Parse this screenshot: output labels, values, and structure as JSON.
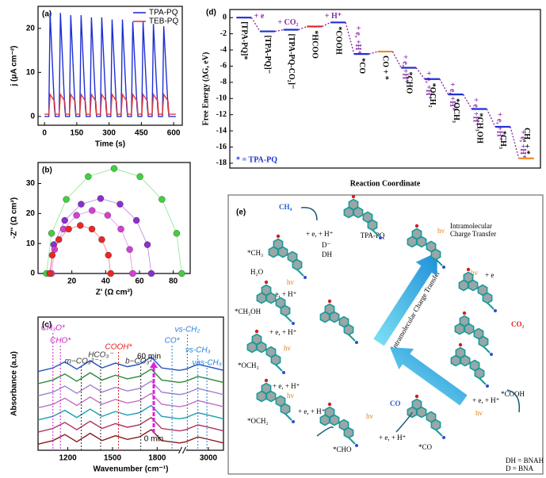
{
  "chart_data": [
    {
      "type": "line",
      "label": "(a)",
      "xlabel": "Time (s)",
      "ylabel": "j (μA cm⁻²)",
      "xlim": [
        -30,
        640
      ],
      "ylim": [
        -2,
        25
      ],
      "xticks": [
        0,
        150,
        300,
        450,
        600
      ],
      "yticks": [
        0,
        10,
        20
      ],
      "legend": "upper right",
      "x": [
        0,
        20,
        26,
        46,
        50,
        68,
        74,
        94,
        98,
        116,
        122,
        142,
        146,
        164,
        170,
        190,
        194,
        212,
        218,
        238,
        242,
        260,
        266,
        286,
        290,
        308,
        314,
        334,
        338,
        356,
        362,
        382,
        386,
        404,
        410,
        430,
        434,
        452,
        458,
        478,
        482,
        500,
        506,
        526,
        530,
        548,
        554,
        574,
        578,
        610
      ],
      "series": [
        {
          "name": "TPA-PQ",
          "color": "#1f2fd6",
          "values": [
            0,
            0,
            23.5,
            2,
            0,
            0,
            23.5,
            2,
            0,
            0,
            23,
            2,
            0,
            0,
            23,
            2,
            0,
            0,
            22.5,
            2,
            0,
            0,
            22.5,
            2,
            0,
            0,
            22,
            2,
            0,
            0,
            22,
            2,
            0,
            0,
            21.5,
            2,
            0,
            0,
            21.5,
            2,
            0,
            0,
            21,
            2,
            0,
            0,
            20.5,
            2,
            0,
            0
          ]
        },
        {
          "name": "TEB-PQ",
          "color": "#e23a3a",
          "values": [
            0.5,
            0.5,
            5,
            3.5,
            0.5,
            0.5,
            5,
            3.5,
            0.5,
            0.5,
            5,
            3.5,
            0.5,
            0.5,
            5,
            3.5,
            0.5,
            0.5,
            5,
            3.5,
            0.5,
            0.5,
            5,
            3.5,
            0.5,
            0.5,
            5,
            3.5,
            0.5,
            0.5,
            5,
            3.5,
            0.5,
            0.5,
            5,
            3.5,
            0.5,
            0.5,
            5,
            3.5,
            0.5,
            0.5,
            5,
            3.5,
            0.5,
            0.5,
            5,
            3.5,
            0.5,
            0.5
          ]
        }
      ]
    },
    {
      "type": "scatter",
      "label": "(b)",
      "xlabel": "Z' (Ω cm²)",
      "ylabel": "-Z'' (Ω cm²)",
      "xlim": [
        0,
        90
      ],
      "ylim": [
        0,
        37
      ],
      "xticks": [
        20,
        40,
        60,
        80
      ],
      "yticks": [
        0,
        10,
        20,
        30
      ],
      "series": [
        {
          "color": "#3fd13f",
          "x": [
            5,
            8,
            16.7,
            29.7,
            45,
            60.3,
            73.3,
            82,
            85
          ],
          "values": [
            0,
            13.4,
            24.7,
            32.3,
            35,
            32.3,
            24.7,
            13.4,
            0
          ]
        },
        {
          "color": "#8a2fd0",
          "x": [
            7,
            9.3,
            15.8,
            25.5,
            37,
            48.5,
            58.2,
            64.7,
            67
          ],
          "values": [
            0,
            9.6,
            17.7,
            23.1,
            25,
            23.1,
            17.7,
            9.6,
            0
          ]
        },
        {
          "color": "#d43fd4",
          "x": [
            8,
            9.8,
            15,
            22.8,
            32,
            41.2,
            49,
            54.2,
            56
          ],
          "values": [
            0,
            8,
            14.8,
            19.4,
            21,
            19.4,
            14.8,
            8,
            0
          ]
        },
        {
          "color": "#ee2525",
          "x": [
            7,
            8.4,
            12.3,
            18.1,
            25,
            31.9,
            37.7,
            41.6,
            43
          ],
          "values": [
            0,
            6.1,
            11.3,
            14.8,
            16,
            14.8,
            11.3,
            6.1,
            0
          ]
        }
      ]
    },
    {
      "type": "line",
      "label": "(c)",
      "xlabel": "Wavenumber (cm⁻¹)",
      "ylabel": "Absorbance (a.u)",
      "xlim": [
        1000,
        3100
      ],
      "xbreak": [
        1950,
        2850
      ],
      "ylim": [
        0.5,
        11.5
      ],
      "xticks": [
        1200,
        1500,
        1800,
        3000
      ],
      "x": [
        1000,
        1100,
        1180,
        1260,
        1350,
        1430,
        1520,
        1600,
        1680,
        1760,
        1830,
        1950,
        2850,
        2930,
        3000,
        3100
      ],
      "series": [
        {
          "color": "#8b1a1a",
          "values": [
            1,
            1.3,
            1.8,
            1.2,
            1.9,
            1.3,
            1.7,
            1.4,
            1.6,
            2.2,
            1.3,
            1.1,
            1.2,
            1.6,
            1.4,
            1.1
          ]
        },
        {
          "color": "#b03060",
          "values": [
            2,
            2.3,
            2.8,
            2.2,
            2.9,
            2.3,
            2.7,
            2.4,
            2.6,
            3.2,
            2.3,
            2.1,
            2.2,
            2.6,
            2.4,
            2.1
          ]
        },
        {
          "color": "#1aa0b0",
          "values": [
            3,
            3.3,
            3.8,
            3.2,
            3.9,
            3.3,
            3.7,
            3.4,
            3.6,
            4.2,
            3.3,
            3.1,
            3.2,
            3.6,
            3.4,
            3.1
          ]
        },
        {
          "color": "#c070c0",
          "values": [
            4,
            4.3,
            4.8,
            4.2,
            4.9,
            4.3,
            4.7,
            4.4,
            4.6,
            5.2,
            4.3,
            4.1,
            4.2,
            4.6,
            4.4,
            4.1
          ]
        },
        {
          "color": "#a080d0",
          "values": [
            5,
            5.3,
            5.8,
            5.2,
            5.9,
            5.3,
            5.7,
            5.4,
            5.6,
            6.2,
            5.3,
            5.1,
            5.2,
            5.6,
            5.4,
            5.1
          ]
        },
        {
          "color": "#2a8a3a",
          "values": [
            6,
            6.3,
            6.8,
            6.2,
            6.9,
            6.3,
            6.7,
            6.4,
            6.6,
            7.2,
            6.3,
            6.1,
            6.2,
            6.6,
            6.4,
            6.1
          ]
        },
        {
          "color": "#2050c0",
          "values": [
            7,
            7.3,
            7.8,
            7.2,
            7.9,
            7.3,
            7.7,
            7.4,
            7.6,
            8.2,
            7.3,
            7.1,
            7.2,
            7.6,
            7.4,
            7.1
          ]
        }
      ],
      "markers": [
        {
          "label": "CH₃O*",
          "x": 1100,
          "color": "#cc22cc"
        },
        {
          "label": "CHO*",
          "x": 1150,
          "color": "#cc22cc"
        },
        {
          "label": "m−CO₃²⁻",
          "x": 1290,
          "color": "#333333"
        },
        {
          "label": "HCO₃⁻",
          "x": 1420,
          "color": "#333333"
        },
        {
          "label": "COOH*",
          "x": 1540,
          "color": "#e02020"
        },
        {
          "label": "b−CO₃²⁻",
          "x": 1690,
          "color": "#333333"
        },
        {
          "label": "CO*",
          "x": 1900,
          "color": "#2a7fd0"
        },
        {
          "label": "νs-CH₂",
          "x": 2860,
          "color": "#2a7fd0"
        },
        {
          "label": "νs-CH₃",
          "x": 2930,
          "color": "#2a7fd0"
        },
        {
          "label": "νas-CH₃",
          "x": 2990,
          "color": "#2a7fd0"
        }
      ],
      "time_labels": [
        "60 min",
        "0 min"
      ]
    },
    {
      "type": "energy",
      "label": "(d)",
      "xlabel": "Reaction Coordinate",
      "ylabel": "Free Energy (ΔG, eV)",
      "ylim": [
        -18.6,
        1
      ],
      "yticks": [
        0,
        -2,
        -4,
        -6,
        -8,
        -10,
        -12,
        -14,
        -16,
        -18
      ],
      "note": "* = TPA-PQ",
      "levels": [
        {
          "label": "[TPA-PQ]*",
          "value": 0,
          "color": "#1f2fd6"
        },
        {
          "label": "[TPA-PQ]⁻",
          "value": -1.7,
          "color": "#1f2fd6",
          "step": "+ e"
        },
        {
          "label": "[TPA-PQ-CO₂]⁻",
          "value": -1.5,
          "color": "#1f2fd6",
          "step": "+ CO₂"
        },
        {
          "label": "*HCOO",
          "value": -1.1,
          "color": "#e02020"
        },
        {
          "label": "*COOH",
          "value": -0.6,
          "color": "#1f2fd6",
          "step": "+ H⁺"
        },
        {
          "label": "*CO",
          "value": -4.5,
          "color": "#1f2fd6",
          "step": "+ e, +H⁺"
        },
        {
          "label": "CO + *",
          "value": -4.2,
          "color": "#f08a20"
        },
        {
          "label": "*CHO",
          "value": -6.2,
          "color": "#1f2fd6",
          "step": "+ e, +H⁺"
        },
        {
          "label": "*OCH₂",
          "value": -7.6,
          "color": "#1f2fd6",
          "step": "+ e, +H⁺"
        },
        {
          "label": "*OCH₃",
          "value": -9.5,
          "color": "#1f2fd6",
          "step": "+ e, +H⁺"
        },
        {
          "label": "*CH₃OH",
          "value": -11.3,
          "color": "#1f2fd6",
          "step": "+ e, +H⁺"
        },
        {
          "label": "*CH₃",
          "value": -13.5,
          "color": "#1f2fd6",
          "step": "+ e, +H⁺"
        },
        {
          "label": "CH₄ + *",
          "value": -17.4,
          "color": "#f08a20",
          "step": "+ e, +H⁺"
        }
      ]
    }
  ],
  "diagram": {
    "label": "(e)",
    "texts": [
      "TPA-PQ",
      "CH₄",
      "*CH₃",
      "H₂O",
      "*CH₃OH",
      "*OCH₃",
      "*OCH₂",
      "*CHO",
      "*CO",
      "*COOH",
      "CO₂",
      "CO",
      "Intramolecular",
      "Charge Transfer",
      "Intramolecular Charge Transfer",
      "DH = BNAH",
      "D = BNA",
      "hv",
      "hv",
      "hv",
      "hv",
      "hv",
      "hv",
      "hv",
      "+ e, + H⁺",
      "+ e, + H⁺",
      "+ e, + H⁺",
      "+ e, + H⁺",
      "+ e, + H⁺",
      "+ e, + H⁺",
      "+ e, + H⁺",
      "+ e",
      "DH",
      "D⁻"
    ]
  }
}
